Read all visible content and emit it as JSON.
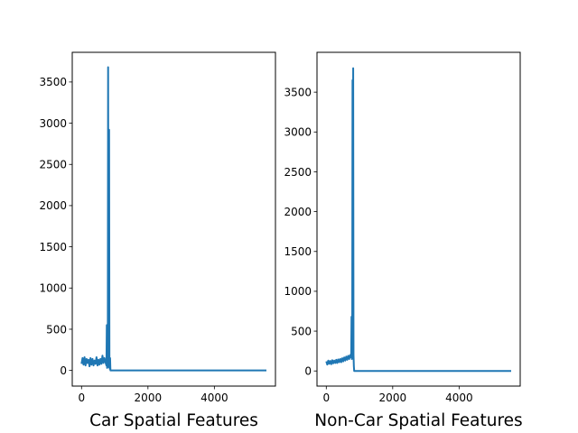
{
  "chart_data": [
    {
      "type": "line",
      "title": "",
      "xlabel": "Car Spatial Features",
      "ylabel": "",
      "xlim": [
        -280,
        5840
      ],
      "ylim": [
        -190,
        3860
      ],
      "xticks": [
        0,
        2000,
        4000
      ],
      "yticks": [
        0,
        500,
        1000,
        1500,
        2000,
        2500,
        3000,
        3500
      ],
      "grid": false,
      "legend": "none",
      "color": "#1f77b4",
      "series": [
        {
          "x": [
            0,
            30,
            60,
            90,
            120,
            150,
            180,
            210,
            240,
            270,
            300,
            330,
            360,
            390,
            420,
            450,
            480,
            510,
            540,
            570,
            600,
            630,
            660,
            690,
            720,
            750,
            760,
            770,
            780,
            790,
            800,
            810,
            820,
            830,
            840,
            850,
            860,
            870,
            880,
            1000,
            2000,
            3000,
            4000,
            5000,
            5568
          ],
          "y": [
            80,
            150,
            70,
            160,
            60,
            140,
            90,
            130,
            50,
            150,
            70,
            140,
            60,
            120,
            80,
            160,
            60,
            130,
            70,
            140,
            80,
            180,
            90,
            150,
            100,
            60,
            550,
            30,
            400,
            50,
            3680,
            700,
            40,
            2920,
            100,
            20,
            150,
            0,
            0,
            0,
            0,
            0,
            0,
            0,
            0
          ]
        }
      ]
    },
    {
      "type": "line",
      "title": "",
      "xlabel": "Non-Car Spatial Features",
      "ylabel": "",
      "xlim": [
        -280,
        5840
      ],
      "ylim": [
        -190,
        4000
      ],
      "xticks": [
        0,
        2000,
        4000
      ],
      "yticks": [
        0,
        500,
        1000,
        1500,
        2000,
        2500,
        3000,
        3500
      ],
      "grid": false,
      "legend": "none",
      "color": "#1f77b4",
      "series": [
        {
          "x": [
            0,
            30,
            60,
            90,
            120,
            150,
            180,
            210,
            240,
            270,
            300,
            330,
            360,
            390,
            420,
            450,
            480,
            510,
            540,
            570,
            600,
            630,
            660,
            690,
            720,
            750,
            760,
            770,
            780,
            790,
            800,
            810,
            820,
            830,
            840,
            850,
            860,
            870,
            1000,
            2000,
            3000,
            4000,
            5000,
            5568
          ],
          "y": [
            120,
            80,
            130,
            90,
            125,
            85,
            135,
            95,
            130,
            100,
            140,
            100,
            145,
            110,
            150,
            110,
            160,
            120,
            170,
            130,
            180,
            140,
            190,
            150,
            200,
            170,
            680,
            150,
            200,
            3650,
            300,
            3800,
            200,
            60,
            0,
            0,
            0,
            0,
            0,
            0,
            0,
            0,
            0,
            0
          ]
        }
      ]
    }
  ]
}
